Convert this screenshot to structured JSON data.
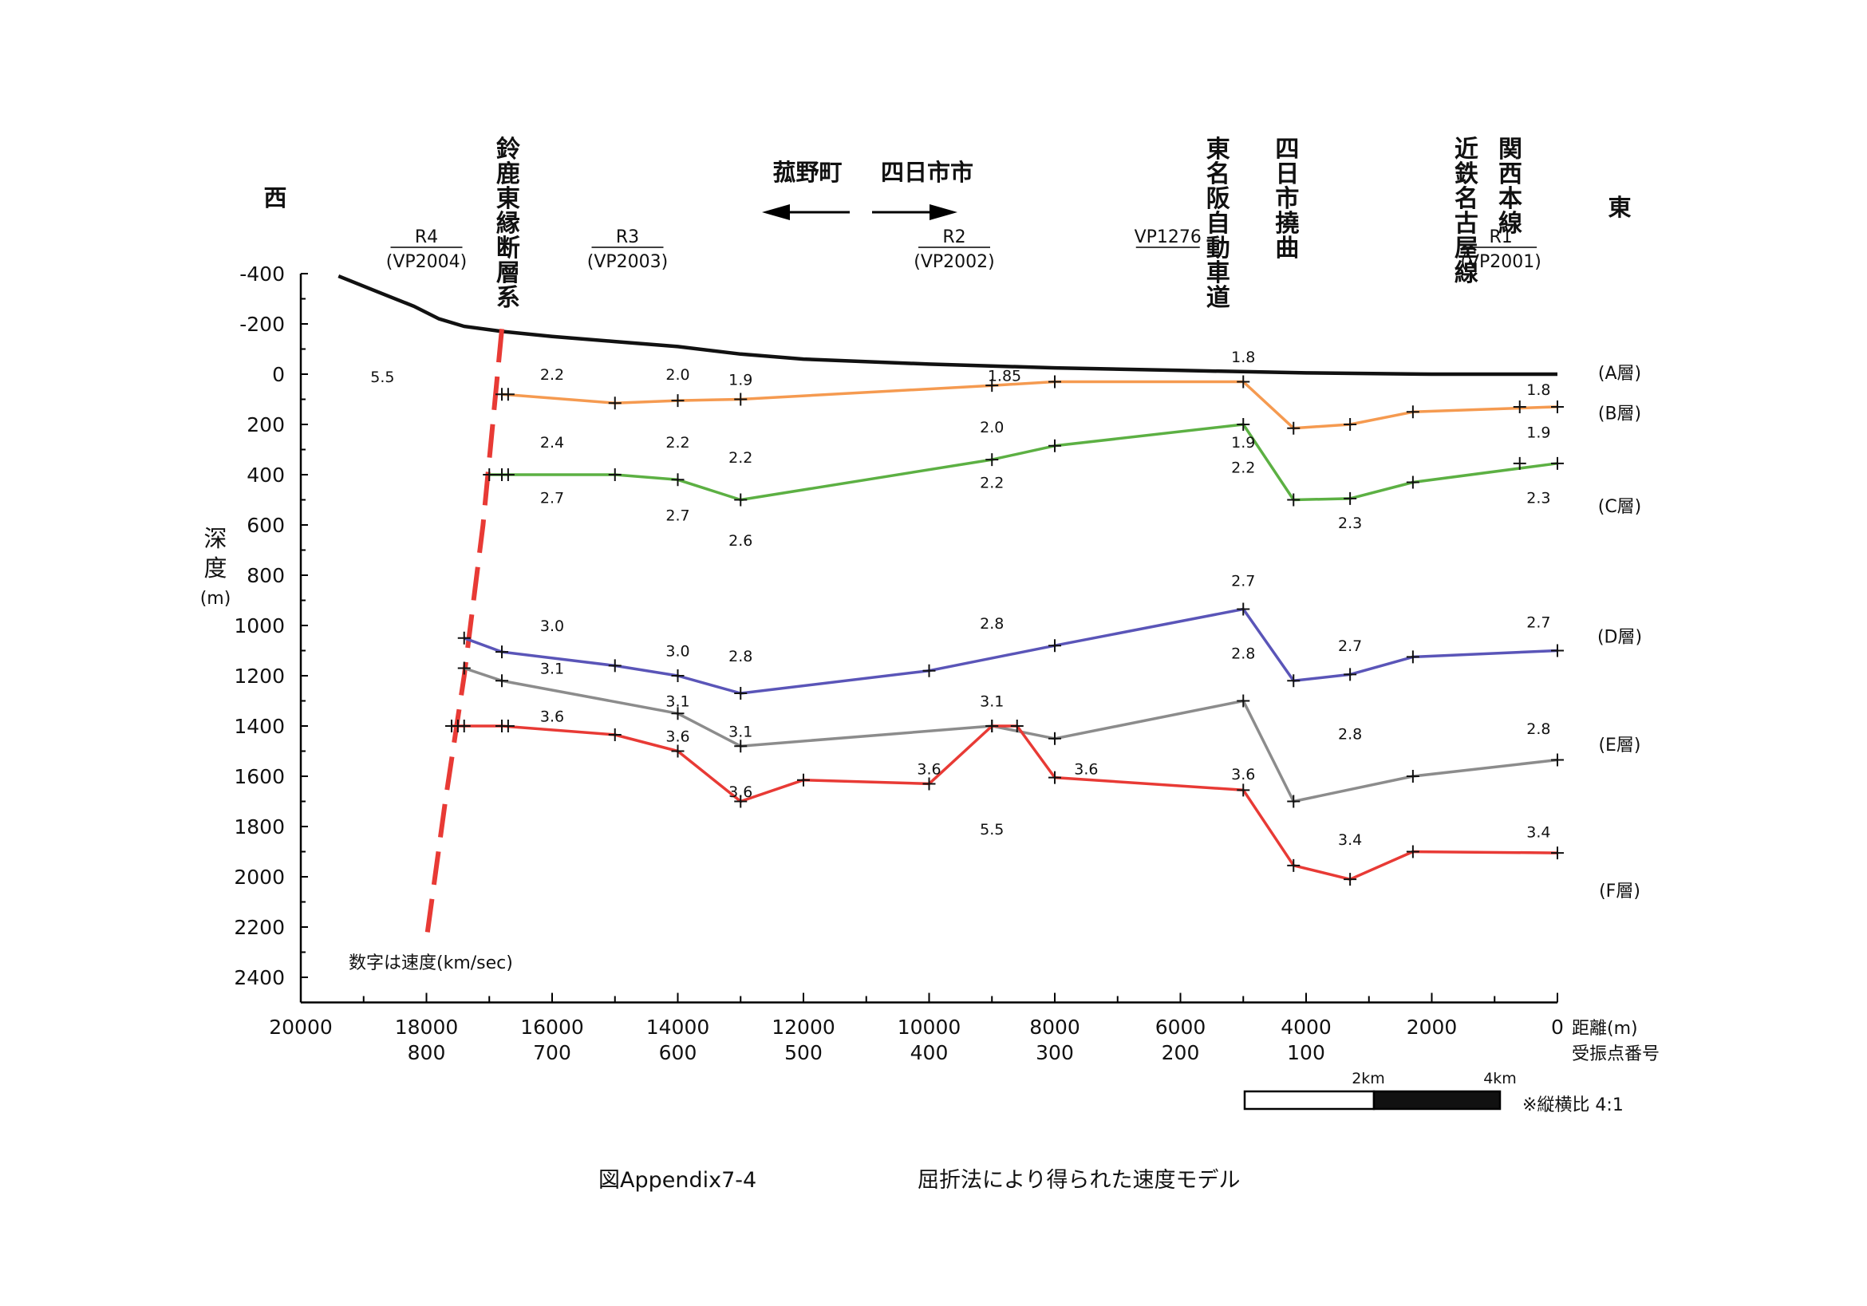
{
  "chart_data": {
    "type": "line",
    "direction": {
      "west": "西",
      "east": "東"
    },
    "ylabel": [
      "深",
      "度",
      "(m)"
    ],
    "xlabel": "距離(m)",
    "x2label": "受振点番号",
    "y_ticks": [
      -400,
      -200,
      0,
      200,
      400,
      600,
      800,
      1000,
      1200,
      1400,
      1600,
      1800,
      2000,
      2200,
      2400
    ],
    "x_ticks": [
      20000,
      18000,
      16000,
      14000,
      12000,
      10000,
      8000,
      6000,
      4000,
      2000,
      0
    ],
    "receiver_ticks": [
      {
        "x": 18000,
        "label": "800"
      },
      {
        "x": 16000,
        "label": "700"
      },
      {
        "x": 14000,
        "label": "600"
      },
      {
        "x": 12000,
        "label": "500"
      },
      {
        "x": 10000,
        "label": "400"
      },
      {
        "x": 8000,
        "label": "300"
      },
      {
        "x": 6000,
        "label": "200"
      },
      {
        "x": 4000,
        "label": "100"
      }
    ],
    "xlim": [
      20000,
      0
    ],
    "ylim": [
      -400,
      2500
    ],
    "lines": [
      {
        "id": "R4",
        "label": "R4",
        "sub": "(VP2004)",
        "x": 18000
      },
      {
        "id": "R3",
        "label": "R3",
        "sub": "(VP2003)",
        "x": 14800
      },
      {
        "id": "R2",
        "label": "R2",
        "sub": "(VP2002)",
        "x": 9600
      },
      {
        "id": "VP1276",
        "label": "VP1276",
        "sub": "",
        "x": 6200
      },
      {
        "id": "R1",
        "label": "R1",
        "sub": "(VP2001)",
        "x": 900
      }
    ],
    "vertical_labels": [
      {
        "text": "鈴鹿東縁断層系",
        "x": 16700
      },
      {
        "text": "東名阪自動車道",
        "x": 5400
      },
      {
        "text": "四日市撓曲",
        "x": 4300
      },
      {
        "text": "近鉄名古屋線",
        "x": 1450
      },
      {
        "text": "関西本線",
        "x": 750
      }
    ],
    "towns": {
      "left": "菰野町",
      "right": "四日市市"
    },
    "surface": [
      [
        19400,
        -390
      ],
      [
        18800,
        -330
      ],
      [
        18200,
        -270
      ],
      [
        17800,
        -220
      ],
      [
        17400,
        -190
      ],
      [
        16800,
        -170
      ],
      [
        16000,
        -150
      ],
      [
        15000,
        -130
      ],
      [
        14000,
        -110
      ],
      [
        13000,
        -80
      ],
      [
        12000,
        -60
      ],
      [
        10000,
        -40
      ],
      [
        8000,
        -25
      ],
      [
        6000,
        -15
      ],
      [
        4000,
        -5
      ],
      [
        2000,
        0
      ],
      [
        0,
        0
      ]
    ],
    "fault": [
      [
        16800,
        -180
      ],
      [
        17100,
        600
      ],
      [
        17400,
        1200
      ],
      [
        17700,
        1700
      ],
      [
        18000,
        2250
      ]
    ],
    "series": [
      {
        "name": "B",
        "color": "#f59a50",
        "points": [
          [
            16800,
            80
          ],
          [
            15000,
            115
          ],
          [
            14000,
            105
          ],
          [
            13000,
            100
          ],
          [
            9000,
            45
          ],
          [
            8000,
            30
          ],
          [
            5000,
            30
          ],
          [
            4200,
            215
          ],
          [
            3300,
            200
          ],
          [
            2300,
            150
          ],
          [
            0,
            130
          ]
        ],
        "extra_marks": [
          [
            16700,
            80
          ],
          [
            600,
            130
          ]
        ]
      },
      {
        "name": "C",
        "color": "#5cb043",
        "points": [
          [
            17000,
            400
          ],
          [
            16800,
            400
          ],
          [
            15000,
            400
          ],
          [
            14000,
            420
          ],
          [
            13000,
            500
          ],
          [
            9000,
            340
          ],
          [
            8000,
            285
          ],
          [
            5000,
            200
          ],
          [
            4200,
            500
          ],
          [
            3300,
            495
          ],
          [
            2300,
            430
          ],
          [
            0,
            355
          ]
        ],
        "extra_marks": [
          [
            16700,
            400
          ],
          [
            600,
            355
          ]
        ]
      },
      {
        "name": "D",
        "color": "#5a55b8",
        "points": [
          [
            17400,
            1050
          ],
          [
            16800,
            1105
          ],
          [
            15000,
            1160
          ],
          [
            14000,
            1200
          ],
          [
            13000,
            1270
          ],
          [
            10000,
            1180
          ],
          [
            8000,
            1080
          ],
          [
            5000,
            935
          ],
          [
            4200,
            1220
          ],
          [
            3300,
            1195
          ],
          [
            2300,
            1125
          ],
          [
            0,
            1100
          ]
        ],
        "extra_marks": []
      },
      {
        "name": "E",
        "color": "#8c8c8c",
        "points": [
          [
            17400,
            1170
          ],
          [
            16800,
            1220
          ],
          [
            14000,
            1350
          ],
          [
            13000,
            1480
          ],
          [
            9000,
            1400
          ],
          [
            8000,
            1450
          ],
          [
            5000,
            1300
          ],
          [
            4200,
            1700
          ],
          [
            2300,
            1600
          ],
          [
            0,
            1535
          ]
        ],
        "extra_marks": []
      },
      {
        "name": "F",
        "color": "#e83a35",
        "points": [
          [
            17600,
            1400
          ],
          [
            17400,
            1400
          ],
          [
            16800,
            1400
          ],
          [
            15000,
            1435
          ],
          [
            14000,
            1500
          ],
          [
            13000,
            1700
          ],
          [
            12000,
            1615
          ],
          [
            10000,
            1630
          ],
          [
            9000,
            1400
          ],
          [
            8600,
            1400
          ],
          [
            8000,
            1605
          ],
          [
            5000,
            1655
          ],
          [
            4200,
            1955
          ],
          [
            3300,
            2010
          ],
          [
            2300,
            1900
          ],
          [
            0,
            1905
          ]
        ],
        "extra_marks": [
          [
            17500,
            1400
          ],
          [
            16700,
            1400
          ]
        ]
      }
    ],
    "layer_labels": [
      {
        "text": "(A層)",
        "y": -10
      },
      {
        "text": "(B層)",
        "y": 150
      },
      {
        "text": "(C層)",
        "y": 520
      },
      {
        "text": "(D層)",
        "y": 1040
      },
      {
        "text": "(E層)",
        "y": 1470
      },
      {
        "text": "(F層)",
        "y": 2050
      }
    ],
    "velocity_labels": [
      {
        "text": "5.5",
        "x": 18700,
        "y": 10
      },
      {
        "text": "2.2",
        "x": 16000,
        "y": 0
      },
      {
        "text": "2.0",
        "x": 14000,
        "y": 0
      },
      {
        "text": "1.9",
        "x": 13000,
        "y": 20
      },
      {
        "text": "1.85",
        "x": 8800,
        "y": 5
      },
      {
        "text": "1.8",
        "x": 5000,
        "y": -70
      },
      {
        "text": "1.8",
        "x": 300,
        "y": 60
      },
      {
        "text": "2.4",
        "x": 16000,
        "y": 270
      },
      {
        "text": "2.2",
        "x": 14000,
        "y": 270
      },
      {
        "text": "2.2",
        "x": 13000,
        "y": 330
      },
      {
        "text": "2.0",
        "x": 9000,
        "y": 210
      },
      {
        "text": "1.9",
        "x": 5000,
        "y": 270
      },
      {
        "text": "1.9",
        "x": 300,
        "y": 230
      },
      {
        "text": "2.7",
        "x": 16000,
        "y": 490
      },
      {
        "text": "2.7",
        "x": 14000,
        "y": 560
      },
      {
        "text": "2.6",
        "x": 13000,
        "y": 660
      },
      {
        "text": "2.2",
        "x": 9000,
        "y": 430
      },
      {
        "text": "2.2",
        "x": 5000,
        "y": 370
      },
      {
        "text": "2.3",
        "x": 3300,
        "y": 590
      },
      {
        "text": "2.3",
        "x": 300,
        "y": 490
      },
      {
        "text": "2.7",
        "x": 5000,
        "y": 820
      },
      {
        "text": "3.0",
        "x": 16000,
        "y": 1000
      },
      {
        "text": "2.8",
        "x": 9000,
        "y": 990
      },
      {
        "text": "2.7",
        "x": 300,
        "y": 985
      },
      {
        "text": "3.0",
        "x": 14000,
        "y": 1100
      },
      {
        "text": "2.8",
        "x": 13000,
        "y": 1120
      },
      {
        "text": "2.8",
        "x": 5000,
        "y": 1110
      },
      {
        "text": "2.7",
        "x": 3300,
        "y": 1080
      },
      {
        "text": "3.1",
        "x": 16000,
        "y": 1170
      },
      {
        "text": "3.1",
        "x": 14000,
        "y": 1300
      },
      {
        "text": "3.1",
        "x": 9000,
        "y": 1300
      },
      {
        "text": "3.1",
        "x": 13000,
        "y": 1420
      },
      {
        "text": "2.8",
        "x": 3300,
        "y": 1430
      },
      {
        "text": "2.8",
        "x": 300,
        "y": 1410
      },
      {
        "text": "3.6",
        "x": 16000,
        "y": 1360
      },
      {
        "text": "3.6",
        "x": 14000,
        "y": 1440
      },
      {
        "text": "3.6",
        "x": 10000,
        "y": 1570
      },
      {
        "text": "3.6",
        "x": 7500,
        "y": 1570
      },
      {
        "text": "3.6",
        "x": 5000,
        "y": 1590
      },
      {
        "text": "3.6",
        "x": 13000,
        "y": 1660
      },
      {
        "text": "5.5",
        "x": 9000,
        "y": 1810
      },
      {
        "text": "3.4",
        "x": 3300,
        "y": 1850
      },
      {
        "text": "3.4",
        "x": 300,
        "y": 1820
      }
    ],
    "note": "数字は速度(km/sec)",
    "scale_bar": {
      "label_mid": "2km",
      "label_end": "4km",
      "note": "※縦横比 4:1"
    },
    "figure_number": "図Appendix7-4",
    "title": "屈折法により得られた速度モデル"
  }
}
